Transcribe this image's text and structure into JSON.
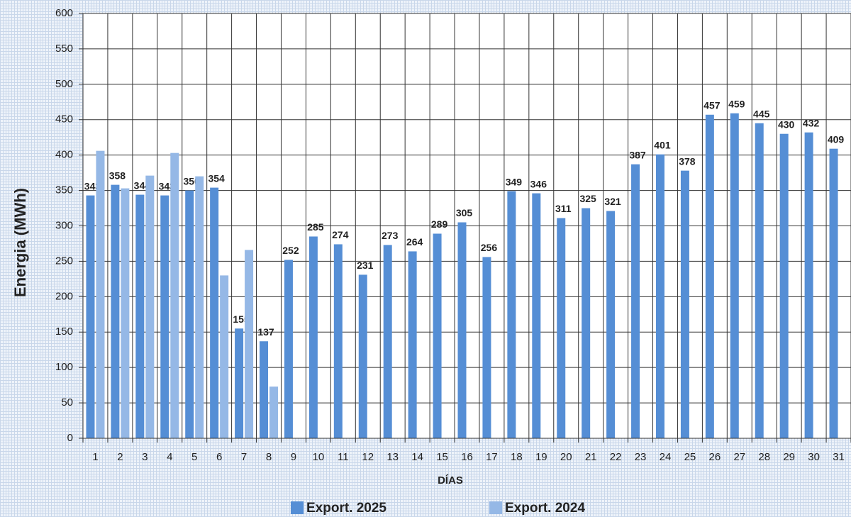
{
  "chart_data": {
    "type": "bar",
    "x_label": "DÍAS",
    "y_label": "Energia (MWh)",
    "categories": [
      "1",
      "2",
      "3",
      "4",
      "5",
      "6",
      "7",
      "8",
      "9",
      "10",
      "11",
      "12",
      "13",
      "14",
      "15",
      "16",
      "17",
      "18",
      "19",
      "20",
      "21",
      "22",
      "23",
      "24",
      "25",
      "26",
      "27",
      "28",
      "29",
      "30",
      "31"
    ],
    "series": [
      {
        "name": "Export. 2025",
        "color": "#558ed5",
        "values": [
          343,
          358,
          344,
          343,
          350,
          354,
          155,
          137,
          252,
          285,
          274,
          231,
          273,
          264,
          289,
          305,
          256,
          349,
          346,
          311,
          325,
          321,
          387,
          401,
          378,
          457,
          459,
          445,
          430,
          432,
          409
        ]
      },
      {
        "name": "Export. 2024",
        "color": "#95b8e6",
        "values": [
          406,
          353,
          371,
          403,
          370,
          230,
          266,
          73,
          null,
          null,
          null,
          null,
          null,
          null,
          null,
          null,
          null,
          null,
          null,
          null,
          null,
          null,
          null,
          null,
          null,
          null,
          null,
          null,
          null,
          null,
          null
        ]
      }
    ],
    "ylim": [
      0,
      600
    ],
    "yticks": [
      0,
      50,
      100,
      150,
      200,
      250,
      300,
      350,
      400,
      450,
      500,
      550,
      600
    ],
    "grid": true,
    "legend": "bottom"
  }
}
